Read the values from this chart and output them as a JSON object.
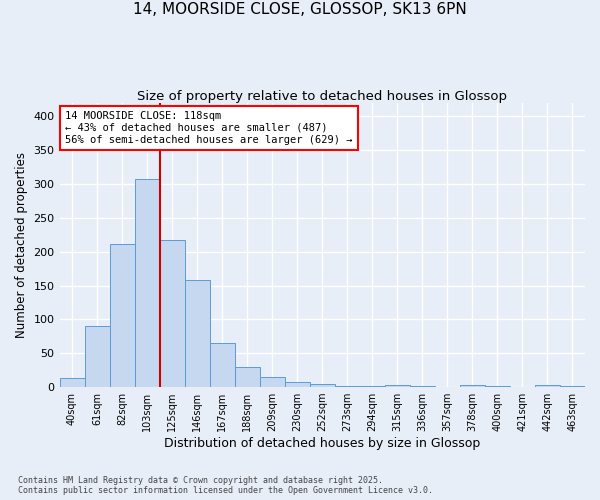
{
  "title": "14, MOORSIDE CLOSE, GLOSSOP, SK13 6PN",
  "subtitle": "Size of property relative to detached houses in Glossop",
  "xlabel": "Distribution of detached houses by size in Glossop",
  "ylabel": "Number of detached properties",
  "categories": [
    "40sqm",
    "61sqm",
    "82sqm",
    "103sqm",
    "125sqm",
    "146sqm",
    "167sqm",
    "188sqm",
    "209sqm",
    "230sqm",
    "252sqm",
    "273sqm",
    "294sqm",
    "315sqm",
    "336sqm",
    "357sqm",
    "378sqm",
    "400sqm",
    "421sqm",
    "442sqm",
    "463sqm"
  ],
  "values": [
    13,
    90,
    212,
    307,
    218,
    158,
    65,
    30,
    15,
    8,
    5,
    2,
    1,
    3,
    1,
    0,
    3,
    1,
    0,
    3,
    1
  ],
  "bar_color": "#c5d8f0",
  "bar_edge_color": "#5b9bd5",
  "red_line_x": 3.5,
  "annotation_text": "14 MOORSIDE CLOSE: 118sqm\n← 43% of detached houses are smaller (487)\n56% of semi-detached houses are larger (629) →",
  "annotation_box_color": "white",
  "annotation_box_edge_color": "red",
  "red_line_color": "#cc0000",
  "ylim": [
    0,
    420
  ],
  "yticks": [
    0,
    50,
    100,
    150,
    200,
    250,
    300,
    350,
    400
  ],
  "background_color": "#e8eef8",
  "grid_color": "#ffffff",
  "footer": "Contains HM Land Registry data © Crown copyright and database right 2025.\nContains public sector information licensed under the Open Government Licence v3.0.",
  "title_fontsize": 11,
  "subtitle_fontsize": 9.5,
  "xlabel_fontsize": 9,
  "ylabel_fontsize": 8.5
}
